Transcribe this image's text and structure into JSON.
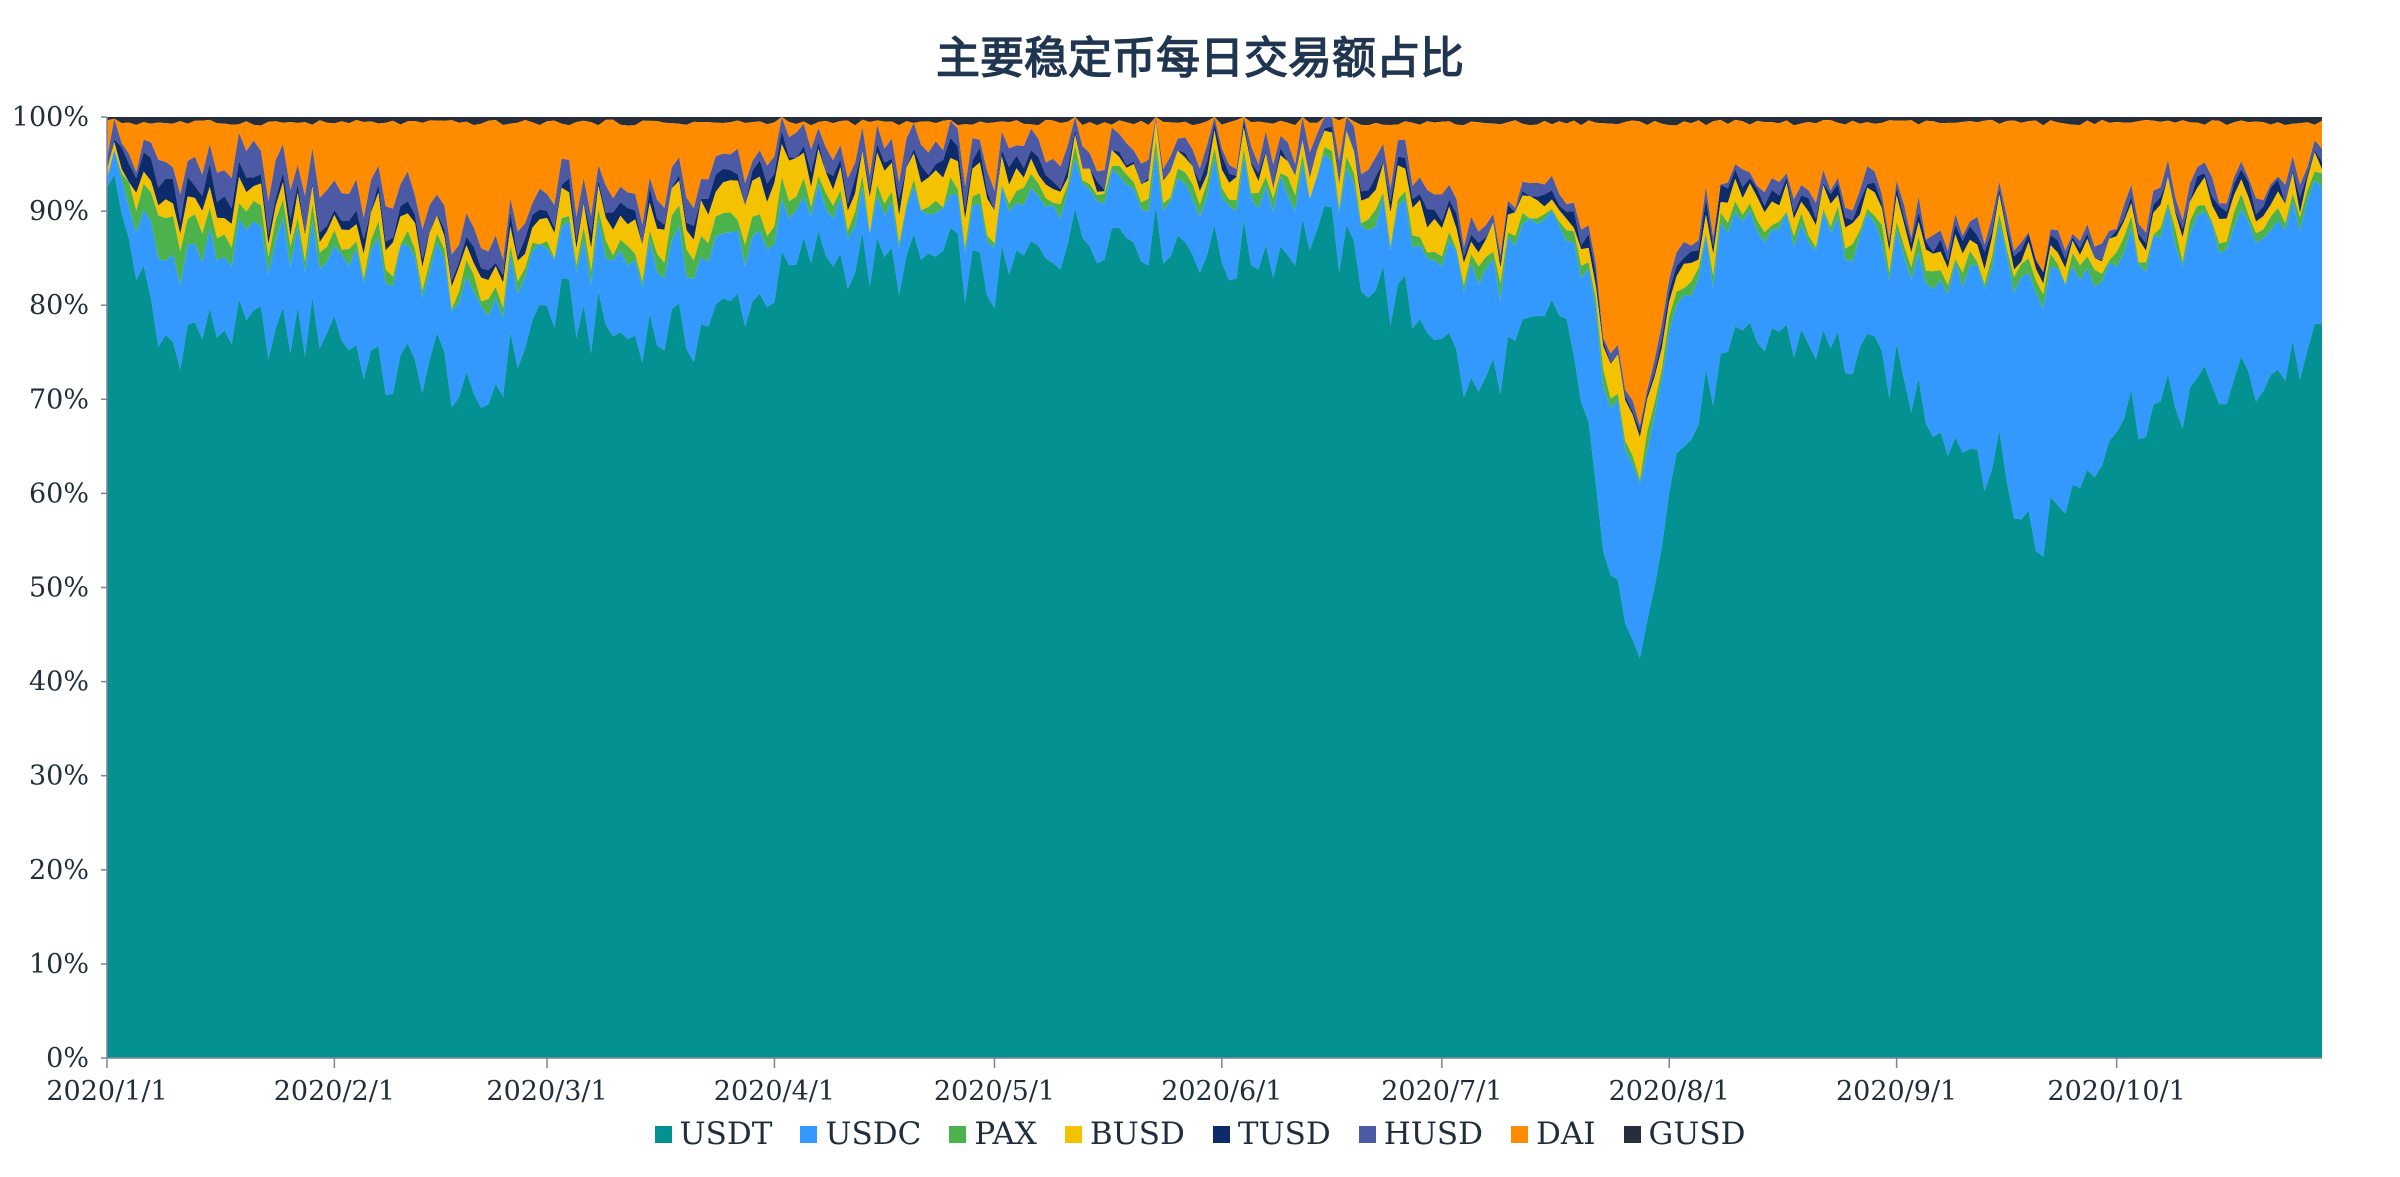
{
  "chart_data": {
    "type": "area",
    "stacked": true,
    "title": "主要稳定币每日交易额占比",
    "x_start": "2020-01-01",
    "x_end": "2020-10-29",
    "x_tick_labels": [
      "2020/1/1",
      "2020/2/1",
      "2020/3/1",
      "2020/4/1",
      "2020/5/1",
      "2020/6/1",
      "2020/7/1",
      "2020/8/1",
      "2020/9/1",
      "2020/10/1"
    ],
    "y_tick_labels": [
      "0%",
      "10%",
      "20%",
      "30%",
      "40%",
      "50%",
      "60%",
      "70%",
      "80%",
      "90%",
      "100%"
    ],
    "ylim": [
      0,
      100
    ],
    "legend_position": "bottom",
    "legend": [
      {
        "name": "USDT",
        "color": "#049191"
      },
      {
        "name": "USDC",
        "color": "#3399ff"
      },
      {
        "name": "PAX",
        "color": "#4cb34c"
      },
      {
        "name": "BUSD",
        "color": "#f5c200"
      },
      {
        "name": "TUSD",
        "color": "#0d2a6b"
      },
      {
        "name": "HUSD",
        "color": "#4c5aa5"
      },
      {
        "name": "DAI",
        "color": "#ff8c00"
      },
      {
        "name": "GUSD",
        "color": "#262d3d"
      }
    ],
    "cumulative_keyframes": {
      "dates": [
        "2020-01-01",
        "2020-01-08",
        "2020-01-16",
        "2020-01-24",
        "2020-02-01",
        "2020-02-08",
        "2020-02-15",
        "2020-02-20",
        "2020-03-01",
        "2020-03-10",
        "2020-03-20",
        "2020-04-01",
        "2020-04-08",
        "2020-04-15",
        "2020-04-25",
        "2020-05-01",
        "2020-05-08",
        "2020-05-15",
        "2020-05-25",
        "2020-06-01",
        "2020-06-08",
        "2020-06-15",
        "2020-06-25",
        "2020-07-01",
        "2020-07-05",
        "2020-07-12",
        "2020-07-18",
        "2020-07-22",
        "2020-07-27",
        "2020-08-01",
        "2020-08-08",
        "2020-08-15",
        "2020-08-25",
        "2020-09-01",
        "2020-09-08",
        "2020-09-15",
        "2020-09-20",
        "2020-10-01",
        "2020-10-10",
        "2020-10-20",
        "2020-10-29"
      ],
      "USDT": [
        95,
        76,
        78,
        77,
        78,
        72,
        75,
        68,
        80,
        77,
        77,
        82,
        86,
        84,
        85,
        82,
        86,
        88,
        87,
        85,
        86,
        88,
        80,
        78,
        70,
        76,
        79,
        60,
        41,
        62,
        73,
        77,
        75,
        73,
        67,
        63,
        55,
        68,
        70,
        72,
        76
      ],
      "USDC": [
        96,
        85,
        86,
        86,
        86,
        84,
        84,
        79,
        86,
        85,
        85,
        88,
        91,
        89,
        89,
        88,
        92,
        94,
        93,
        92,
        93,
        93,
        88,
        86,
        82,
        86,
        88,
        78,
        60,
        79,
        86,
        88,
        87,
        85,
        84,
        85,
        82,
        86,
        87,
        88,
        91
      ],
      "PAX": [
        96,
        89,
        88,
        88,
        87,
        85,
        85,
        80,
        87,
        86,
        87,
        90,
        92,
        90,
        90,
        89,
        93,
        95,
        94,
        93,
        94,
        94,
        89,
        87,
        83,
        87,
        89,
        79,
        61,
        80,
        87,
        89,
        88,
        86,
        85,
        86,
        83,
        87,
        88,
        89,
        92
      ],
      "BUSD": [
        96,
        91,
        90,
        90,
        89,
        88,
        87,
        82,
        89,
        89,
        90,
        94,
        94,
        93,
        93,
        92,
        94,
        96,
        96,
        95,
        96,
        96,
        92,
        90,
        85,
        89,
        90,
        81,
        66,
        82,
        89,
        91,
        90,
        88,
        87,
        88,
        84,
        89,
        90,
        91,
        93
      ],
      "TUSD": [
        97,
        93,
        92,
        91,
        90,
        89,
        88,
        83,
        90,
        90,
        91,
        95,
        95,
        94,
        94,
        93,
        95,
        96,
        96,
        96,
        96,
        96,
        93,
        91,
        86,
        89,
        91,
        82,
        66,
        83,
        90,
        92,
        91,
        89,
        88,
        89,
        85,
        89,
        91,
        92,
        94
      ],
      "HUSD": [
        98,
        95,
        95,
        94,
        93,
        92,
        90,
        85,
        92,
        92,
        93,
        97,
        97,
        96,
        96,
        95,
        97,
        98,
        98,
        97,
        98,
        98,
        95,
        93,
        87,
        90,
        92,
        83,
        67,
        84,
        91,
        93,
        92,
        90,
        89,
        90,
        86,
        90,
        92,
        93,
        95
      ],
      "DAI": [
        99.6,
        99.6,
        99.6,
        99.6,
        99.6,
        99.6,
        99.6,
        99.6,
        99.6,
        99.6,
        99.6,
        99.6,
        99.6,
        99.6,
        99.6,
        99.6,
        99.6,
        99.6,
        99.6,
        99.6,
        99.6,
        99.6,
        99.6,
        99.6,
        99.6,
        99.6,
        99.6,
        99.6,
        99.6,
        99.6,
        99.6,
        99.6,
        99.6,
        99.6,
        99.6,
        99.6,
        99.6,
        99.6,
        99.6,
        99.6,
        99.6
      ],
      "GUSD": [
        100,
        100,
        100,
        100,
        100,
        100,
        100,
        100,
        100,
        100,
        100,
        100,
        100,
        100,
        100,
        100,
        100,
        100,
        100,
        100,
        100,
        100,
        100,
        100,
        100,
        100,
        100,
        100,
        100,
        100,
        100,
        100,
        100,
        100,
        100,
        100,
        100,
        100,
        100,
        100,
        100
      ]
    }
  }
}
